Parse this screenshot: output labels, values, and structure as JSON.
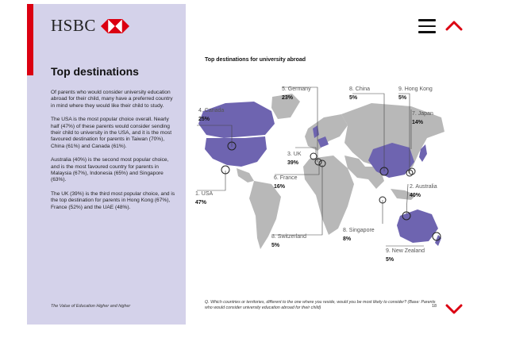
{
  "brand": {
    "name": "HSBC",
    "accent": "#db0011",
    "panel_color": "#d4d2ea",
    "map_highlight": "#6e64b0",
    "map_land": "#b8b8b8"
  },
  "header": {
    "menu_icon": "hamburger-icon",
    "up_icon": "chevron-up-icon",
    "down_icon": "chevron-down-icon"
  },
  "sidebar": {
    "title": "Top destinations",
    "paragraphs": [
      "Of parents who would consider university education abroad for their child, many have a preferred country in mind where they would like their child to study.",
      "The USA is the most popular choice overall. Nearly half (47%) of these parents would consider sending their child to university in the USA, and it is the most favoured destination for parents in Taiwan (70%), China (61%) and Canada (61%).",
      "Australia (40%) is the second most popular choice, and is the most favoured country for parents in Malaysia (67%), Indonesia (65%) and Singapore (63%).",
      "The UK (39%) is the third most popular choice, and is the top destination for parents in Hong Kong (67%), France (52%) and the UAE (48%)."
    ],
    "footer": "The Value of Education Higher and higher"
  },
  "map": {
    "title": "Top destinations for university abroad",
    "labels": [
      {
        "key": "germany",
        "name": "5. Germany",
        "pct": "23%"
      },
      {
        "key": "china",
        "name": "8. China",
        "pct": "5%"
      },
      {
        "key": "hongkong",
        "name": "9. Hong Kong",
        "pct": "5%"
      },
      {
        "key": "canada",
        "name": "4. Canada",
        "pct": "25%"
      },
      {
        "key": "japan",
        "name": "7. Japan",
        "pct": "14%"
      },
      {
        "key": "uk",
        "name": "3. UK",
        "pct": "39%"
      },
      {
        "key": "france",
        "name": "6. France",
        "pct": "16%"
      },
      {
        "key": "usa",
        "name": "1. USA",
        "pct": "47%"
      },
      {
        "key": "australia",
        "name": "2. Australia",
        "pct": "40%"
      },
      {
        "key": "singapore",
        "name": "8. Singapore",
        "pct": "8%"
      },
      {
        "key": "switzerland",
        "name": "8. Switzerland",
        "pct": "5%"
      },
      {
        "key": "newzealand",
        "name": "9. New Zealand",
        "pct": "5%"
      }
    ]
  },
  "footer": {
    "question": "Q. Which countries or territories, different to the one where you reside, would you be most likely to consider? (Base: Parents who would consider university education abroad for their child)",
    "page_number": "18"
  }
}
